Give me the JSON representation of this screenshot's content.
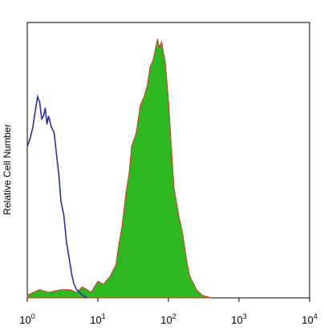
{
  "chart_data": {
    "type": "area",
    "title": "",
    "xlabel": "",
    "ylabel": "Relative Cell Number",
    "x_scale": "log",
    "xlim": [
      1,
      10000
    ],
    "ylim": [
      0,
      100
    ],
    "grid": false,
    "x_ticks": [
      {
        "value": 1,
        "base": "10",
        "exp": "0"
      },
      {
        "value": 10,
        "base": "10",
        "exp": "1"
      },
      {
        "value": 100,
        "base": "10",
        "exp": "2"
      },
      {
        "value": 1000,
        "base": "10",
        "exp": "3"
      },
      {
        "value": 10000,
        "base": "10",
        "exp": "4"
      }
    ],
    "series": [
      {
        "style": "filled",
        "fill": "#2db81f",
        "stroke": "#e0302a",
        "x": [
          1,
          1.5,
          2,
          3,
          4,
          5,
          6,
          7,
          8,
          10,
          12,
          15,
          18,
          20,
          22,
          25,
          28,
          30,
          35,
          40,
          45,
          50,
          55,
          60,
          65,
          70,
          75,
          80,
          85,
          90,
          100,
          110,
          120,
          140,
          160,
          180,
          200,
          250,
          300,
          400
        ],
        "y": [
          1,
          3,
          2,
          3,
          3,
          2,
          4,
          3,
          2,
          6,
          5,
          8,
          12,
          20,
          26,
          38,
          46,
          55,
          60,
          70,
          73,
          77,
          84,
          86,
          90,
          94,
          91,
          93,
          89,
          86,
          72,
          55,
          40,
          30,
          23,
          14,
          8,
          3,
          1,
          0
        ]
      },
      {
        "style": "line",
        "stroke": "#2a2fa8",
        "x": [
          1,
          1.1,
          1.2,
          1.3,
          1.4,
          1.5,
          1.6,
          1.7,
          1.8,
          1.9,
          2,
          2.2,
          2.4,
          2.6,
          2.8,
          3,
          3.3,
          3.6,
          4,
          4.3,
          4.6,
          5,
          5.5,
          6,
          7
        ],
        "y": [
          55,
          58,
          62,
          68,
          73,
          71,
          65,
          66,
          69,
          63,
          66,
          62,
          60,
          52,
          45,
          35,
          30,
          20,
          13,
          8,
          5,
          3,
          2,
          1,
          0
        ]
      }
    ]
  }
}
